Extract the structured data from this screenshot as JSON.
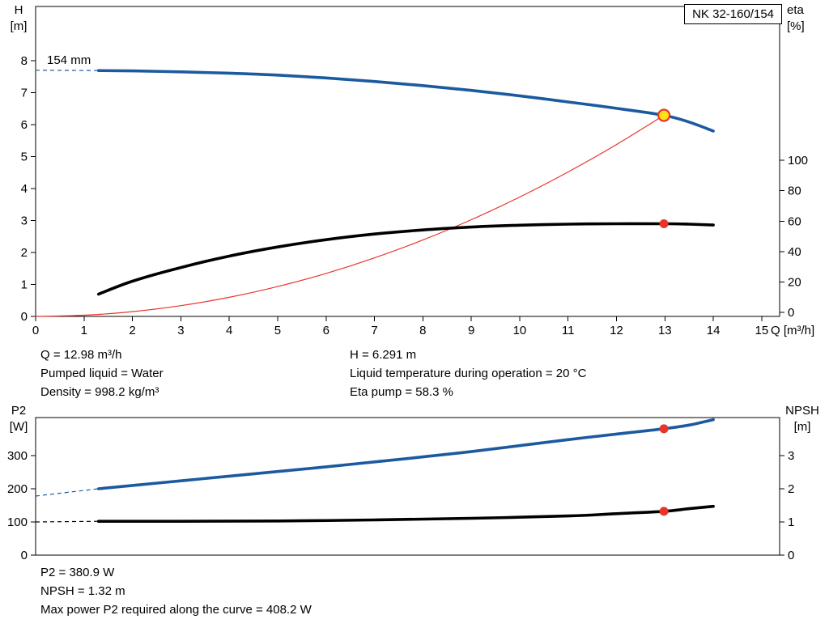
{
  "labels": {
    "model": "NK 32-160/154",
    "impeller": "154 mm",
    "h_axis": [
      "H",
      "[m]"
    ],
    "eta_axis": [
      "eta",
      "[%]"
    ],
    "q_axis": "Q [m³/h]",
    "p2_axis": [
      "P2",
      "[W]"
    ],
    "npsh_axis": [
      "NPSH",
      "[m]"
    ]
  },
  "info": {
    "q": "Q = 12.98 m³/h",
    "pumped_liquid": "Pumped liquid = Water",
    "density": "Density = 998.2 kg/m³",
    "h": "H = 6.291 m",
    "temperature": "Liquid temperature during operation = 20 °C",
    "eta": "Eta pump = 58.3 %"
  },
  "results": {
    "p2": "P2 = 380.9 W",
    "npsh": "NPSH = 1.32 m",
    "max_power": "Max power P2 required along the curve = 408.2 W"
  },
  "colors": {
    "curve_blue": "#1c5aa0",
    "curve_black": "#000000",
    "system_red": "#e8352c",
    "duty_yellow": "#ffe11a"
  },
  "chart_data": [
    {
      "id": "hq",
      "type": "line",
      "title": "NK 32-160/154",
      "xlabel": "Q [m³/h]",
      "ylabel_left": "H [m]",
      "ylabel_right": "eta [%]",
      "xlim": [
        0,
        15.37
      ],
      "ylim_left": [
        0,
        9.7
      ],
      "ylim_right": [
        0,
        100
      ],
      "x_ticks": [
        0,
        1,
        2,
        3,
        4,
        5,
        6,
        7,
        8,
        9,
        10,
        11,
        12,
        13,
        14,
        15
      ],
      "left_ticks": [
        0,
        1,
        2,
        3,
        4,
        5,
        6,
        7,
        8
      ],
      "right_ticks": [
        0,
        20,
        40,
        60,
        80,
        100
      ],
      "grid": false,
      "series": [
        {
          "name": "system-curve",
          "axis": "left",
          "color": "#e8352c",
          "width": 1.2,
          "points": [
            [
              0,
              0
            ],
            [
              1,
              0.037
            ],
            [
              2,
              0.149
            ],
            [
              3,
              0.336
            ],
            [
              4,
              0.597
            ],
            [
              5,
              0.933
            ],
            [
              6,
              1.344
            ],
            [
              7,
              1.83
            ],
            [
              8,
              2.39
            ],
            [
              9,
              3.025
            ],
            [
              10,
              3.734
            ],
            [
              11,
              4.518
            ],
            [
              12,
              5.377
            ],
            [
              12.98,
              6.291
            ]
          ]
        },
        {
          "name": "efficiency-curve",
          "axis": "right",
          "color": "#000000",
          "width": 3.6,
          "points": [
            [
              1.3,
              12
            ],
            [
              2,
              20.5
            ],
            [
              3,
              29.5
            ],
            [
              4,
              37
            ],
            [
              5,
              43
            ],
            [
              6,
              47.8
            ],
            [
              7,
              51.5
            ],
            [
              8,
              54.2
            ],
            [
              9,
              56.1
            ],
            [
              10,
              57.3
            ],
            [
              11,
              58.0
            ],
            [
              12,
              58.3
            ],
            [
              12.98,
              58.3
            ],
            [
              13.5,
              58.0
            ],
            [
              14,
              57.4
            ]
          ]
        },
        {
          "name": "head-curve",
          "axis": "left",
          "color": "#1c5aa0",
          "width": 3.6,
          "lead": [
            [
              0,
              7.7
            ],
            [
              1.3,
              7.69
            ]
          ],
          "points": [
            [
              1.3,
              7.69
            ],
            [
              2,
              7.68
            ],
            [
              3,
              7.65
            ],
            [
              4,
              7.61
            ],
            [
              5,
              7.55
            ],
            [
              6,
              7.46
            ],
            [
              7,
              7.35
            ],
            [
              8,
              7.22
            ],
            [
              9,
              7.07
            ],
            [
              10,
              6.9
            ],
            [
              11,
              6.71
            ],
            [
              12,
              6.51
            ],
            [
              12.98,
              6.291
            ],
            [
              13.5,
              6.08
            ],
            [
              14,
              5.8
            ]
          ]
        }
      ],
      "markers": [
        {
          "name": "duty-point-head",
          "axis": "left",
          "x": 12.98,
          "y": 6.291,
          "r": 7,
          "fill": "#ffe11a",
          "stroke": "#e8352c",
          "stroke_width": 2.2
        },
        {
          "name": "duty-point-eta",
          "axis": "right",
          "x": 12.98,
          "y": 58.3,
          "r": 5.5,
          "fill": "#e8352c"
        }
      ]
    },
    {
      "id": "p2",
      "type": "line",
      "title": "",
      "xlabel": "",
      "ylabel_left": "P2 [W]",
      "ylabel_right": "NPSH [m]",
      "xlim": [
        0,
        15.37
      ],
      "ylim_left": [
        0,
        415
      ],
      "ylim_right": [
        0,
        4.15
      ],
      "x_ticks": [],
      "left_ticks": [
        0,
        100,
        200,
        300
      ],
      "right_ticks": [
        0,
        1,
        2,
        3
      ],
      "grid": false,
      "series": [
        {
          "name": "npsh-curve",
          "axis": "right",
          "color": "#000000",
          "width": 3.6,
          "lead": [
            [
              0,
              1.0
            ],
            [
              1.3,
              1.02
            ]
          ],
          "points": [
            [
              1.3,
              1.02
            ],
            [
              3,
              1.02
            ],
            [
              5,
              1.03
            ],
            [
              7,
              1.06
            ],
            [
              9,
              1.11
            ],
            [
              11,
              1.18
            ],
            [
              12,
              1.25
            ],
            [
              12.98,
              1.32
            ],
            [
              13.5,
              1.4
            ],
            [
              14,
              1.47
            ]
          ]
        },
        {
          "name": "p2-curve",
          "axis": "left",
          "color": "#1c5aa0",
          "width": 3.6,
          "lead": [
            [
              0,
              178
            ],
            [
              1.3,
              200
            ]
          ],
          "points": [
            [
              1.3,
              200
            ],
            [
              2,
              210
            ],
            [
              3,
              224
            ],
            [
              4,
              238
            ],
            [
              5,
              252
            ],
            [
              6,
              266
            ],
            [
              7,
              281
            ],
            [
              8,
              296
            ],
            [
              9,
              312
            ],
            [
              10,
              330
            ],
            [
              11,
              348
            ],
            [
              12,
              365
            ],
            [
              12.98,
              380.9
            ],
            [
              13.5,
              392
            ],
            [
              14,
              408.2
            ]
          ]
        }
      ],
      "markers": [
        {
          "name": "duty-point-p2",
          "axis": "left",
          "x": 12.98,
          "y": 380.9,
          "r": 5.5,
          "fill": "#e8352c"
        },
        {
          "name": "duty-point-npsh",
          "axis": "right",
          "x": 12.98,
          "y": 1.32,
          "r": 5.5,
          "fill": "#e8352c"
        }
      ]
    }
  ]
}
